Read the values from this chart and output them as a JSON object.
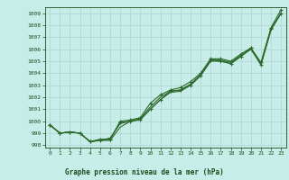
{
  "xlabel": "Graphe pression niveau de la mer (hPa)",
  "hours": [
    0,
    1,
    2,
    3,
    4,
    5,
    6,
    7,
    8,
    9,
    10,
    11,
    12,
    13,
    14,
    15,
    16,
    17,
    18,
    19,
    20,
    21,
    22,
    23
  ],
  "series_with_markers": [
    [
      999.7,
      999.0,
      999.1,
      999.0,
      998.3,
      998.4,
      998.5,
      999.9,
      1000.0,
      1000.1,
      1001.0,
      1001.8,
      1002.5,
      1002.6,
      1003.0,
      1003.8,
      1005.1,
      1005.0,
      1004.8,
      1005.4,
      1006.1,
      1004.7,
      1007.7,
      1009.0
    ],
    [
      999.7,
      999.0,
      999.1,
      999.0,
      998.3,
      998.5,
      998.5,
      1000.0,
      1000.1,
      1000.3,
      1001.5,
      1002.2,
      1002.6,
      1002.8,
      1003.3,
      1004.0,
      1005.2,
      1005.2,
      1005.0,
      1005.6,
      1006.1,
      1004.9,
      1007.8,
      1009.3
    ]
  ],
  "series_no_markers": [
    [
      999.7,
      999.0,
      999.1,
      999.0,
      998.3,
      998.4,
      998.4,
      999.5,
      1000.0,
      1000.2,
      1001.2,
      1002.0,
      1002.5,
      1002.6,
      1003.1,
      1003.9,
      1005.1,
      1005.1,
      1004.9,
      1005.5,
      1006.0,
      1004.7,
      1007.6,
      1009.0
    ],
    [
      999.7,
      999.0,
      999.1,
      999.0,
      998.3,
      998.4,
      998.6,
      999.8,
      1000.0,
      1000.2,
      1001.0,
      1001.8,
      1002.4,
      1002.5,
      1003.0,
      1003.8,
      1005.0,
      1005.0,
      1004.8,
      1005.4,
      1006.0,
      1004.8,
      1007.7,
      1009.0
    ]
  ],
  "line_color": "#2d6a2d",
  "marker": "+",
  "markersize": 3.5,
  "linewidth": 0.8,
  "bg_color": "#c8ede8",
  "grid_color": "#b0d8d4",
  "axis_label_color": "#1a4a1a",
  "ylim": [
    997.8,
    1009.5
  ],
  "yticks": [
    998,
    999,
    1000,
    1001,
    1002,
    1003,
    1004,
    1005,
    1006,
    1007,
    1008,
    1009
  ],
  "xlim": [
    -0.5,
    23.5
  ],
  "xticks": [
    0,
    1,
    2,
    3,
    4,
    5,
    6,
    7,
    8,
    9,
    10,
    11,
    12,
    13,
    14,
    15,
    16,
    17,
    18,
    19,
    20,
    21,
    22,
    23
  ]
}
